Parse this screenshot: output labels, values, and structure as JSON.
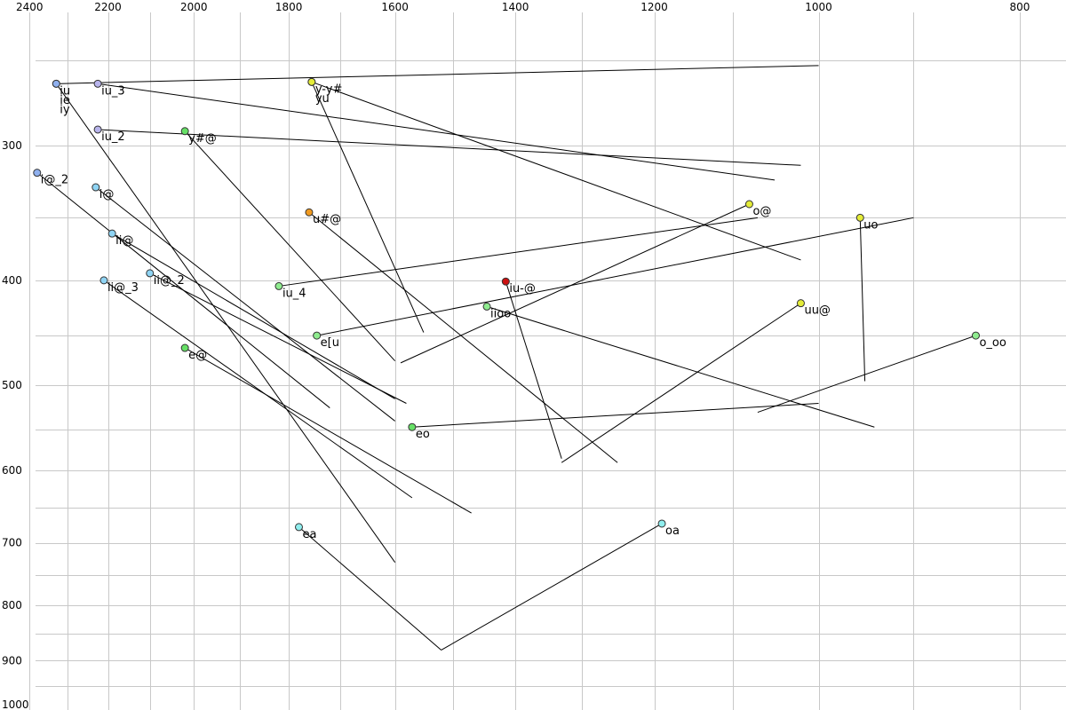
{
  "chart_data": {
    "type": "scatter",
    "title": "",
    "xlabel": "",
    "ylabel": "",
    "x_axis": {
      "reversed": true,
      "scale": "log",
      "range": [
        2480,
        760
      ],
      "ticks": [
        2400,
        2200,
        2000,
        1800,
        1600,
        1400,
        1200,
        1000,
        800
      ]
    },
    "y_axis": {
      "reversed": true,
      "scale": "log",
      "range": [
        220,
        1000
      ],
      "ticks": [
        300,
        400,
        500,
        600,
        700,
        800,
        900,
        1000
      ]
    },
    "grid": true,
    "legend": "none",
    "colors": {
      "blue": "#8fb0ee",
      "lavender": "#b8b4ec",
      "skyblue": "#8fd4f4",
      "cyan": "#90eeee",
      "green": "#66e066",
      "lightgreen": "#8fec8f",
      "yellow": "#e4ec38",
      "orange": "#f09a20",
      "red": "#cc1010"
    },
    "vowels": [
      {
        "label": "iu\nie\niy",
        "f2": 2330,
        "f1": 263,
        "end_f2": 1600,
        "end_f1": 730,
        "color": "blue"
      },
      {
        "label": "",
        "f2": 2330,
        "f1": 263,
        "end_f2": 1000,
        "end_f1": 253,
        "color": "blue"
      },
      {
        "label": "iu_3",
        "f2": 2225,
        "f1": 263,
        "end_f2": 1050,
        "end_f1": 323,
        "color": "lavender"
      },
      {
        "label": "iu_2",
        "f2": 2225,
        "f1": 290,
        "end_f2": 1020,
        "end_f1": 313,
        "color": "lavender"
      },
      {
        "label": "i@_2",
        "f2": 2380,
        "f1": 318,
        "end_f2": 1720,
        "end_f1": 525,
        "color": "blue"
      },
      {
        "label": "i@",
        "f2": 2230,
        "f1": 328,
        "end_f2": 1600,
        "end_f1": 540,
        "color": "skyblue"
      },
      {
        "label": "ii@",
        "f2": 2190,
        "f1": 362,
        "end_f2": 1600,
        "end_f1": 515,
        "color": "skyblue"
      },
      {
        "label": "ii@_2",
        "f2": 2100,
        "f1": 394,
        "end_f2": 1580,
        "end_f1": 520,
        "color": "skyblue"
      },
      {
        "label": "ii@_3",
        "f2": 2210,
        "f1": 400,
        "end_f2": 1570,
        "end_f1": 636,
        "color": "skyblue"
      },
      {
        "label": "e@",
        "f2": 2020,
        "f1": 462,
        "end_f2": 1470,
        "end_f1": 657,
        "color": "green"
      },
      {
        "label": "y#@",
        "f2": 2020,
        "f1": 291,
        "end_f2": 1600,
        "end_f1": 475,
        "color": "green"
      },
      {
        "label": "y-y#\nyu",
        "f2": 1755,
        "f1": 262,
        "end_f2": 1550,
        "end_f1": 447,
        "color": "yellow"
      },
      {
        "label": "",
        "f2": 1755,
        "f1": 262,
        "end_f2": 1020,
        "end_f1": 383,
        "color": "yellow"
      },
      {
        "label": "u#@",
        "f2": 1760,
        "f1": 346,
        "end_f2": 1250,
        "end_f1": 590,
        "color": "orange"
      },
      {
        "label": "iu_4",
        "f2": 1820,
        "f1": 405,
        "end_f2": 1070,
        "end_f1": 350,
        "color": "lightgreen"
      },
      {
        "label": "e[u",
        "f2": 1745,
        "f1": 450,
        "end_f2": 900,
        "end_f1": 350,
        "color": "lightgreen"
      },
      {
        "label": "iu-@",
        "f2": 1415,
        "f1": 401,
        "end_f2": 1330,
        "end_f1": 585,
        "color": "red"
      },
      {
        "label": "iioo",
        "f2": 1445,
        "f1": 423,
        "end_f2": 940,
        "end_f1": 547,
        "color": "lightgreen"
      },
      {
        "label": "o@",
        "f2": 1080,
        "f1": 340,
        "end_f2": 1590,
        "end_f1": 477,
        "color": "yellow"
      },
      {
        "label": "uo",
        "f2": 955,
        "f1": 350,
        "end_f2": 950,
        "end_f1": 496,
        "color": "yellow"
      },
      {
        "label": "uu@",
        "f2": 1020,
        "f1": 420,
        "end_f2": 1330,
        "end_f1": 590,
        "color": "yellow"
      },
      {
        "label": "o_oo",
        "f2": 840,
        "f1": 450,
        "end_f2": 1070,
        "end_f1": 530,
        "color": "lightgreen"
      },
      {
        "label": "eo",
        "f2": 1570,
        "f1": 547,
        "end_f2": 1000,
        "end_f1": 520,
        "color": "green"
      },
      {
        "label": "ea",
        "f2": 1780,
        "f1": 677,
        "end_f2": 1520,
        "end_f1": 880,
        "color": "cyan"
      },
      {
        "label": "oa",
        "f2": 1190,
        "f1": 672,
        "end_f2": 1520,
        "end_f1": 880,
        "color": "cyan"
      }
    ]
  }
}
